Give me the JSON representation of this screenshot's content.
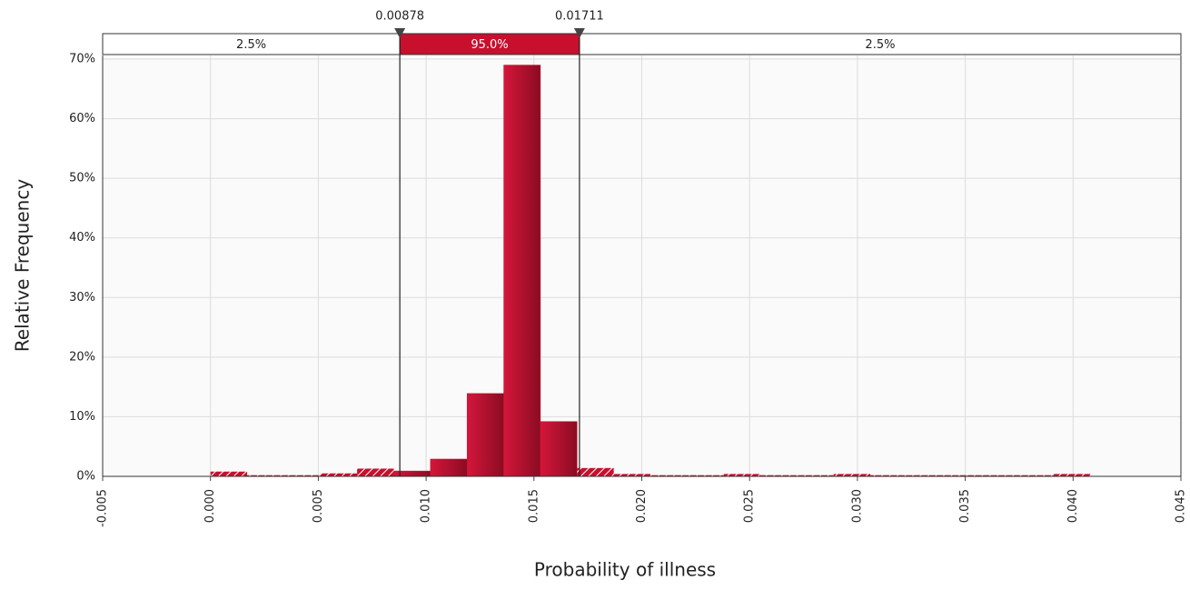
{
  "chart_data": {
    "type": "histogram",
    "xlabel": "Probability of illness",
    "ylabel": "Relative Frequency",
    "bins": [
      0,
      0.0017,
      0.0034,
      0.0051,
      0.0068,
      0.0085,
      0.0102,
      0.0119,
      0.0136,
      0.0153,
      0.017,
      0.0187,
      0.0204,
      0.0221,
      0.0238,
      0.0255,
      0.0272,
      0.0289,
      0.0306,
      0.0323,
      0.034,
      0.0357,
      0.0374,
      0.0391,
      0.0408
    ],
    "values": [
      0.8,
      0.2,
      0.2,
      0.5,
      1.3,
      0.9,
      2.9,
      13.9,
      69.0,
      9.2,
      1.4,
      0.4,
      0.2,
      0.2,
      0.4,
      0.2,
      0.2,
      0.4,
      0.2,
      0.2,
      0.2,
      0.2,
      0.2,
      0.4
    ],
    "color": "#c8102e",
    "xlim": [
      -0.005,
      0.045
    ],
    "ylim": [
      0,
      70
    ],
    "xticks": [
      {
        "value": -0.005,
        "label": "-0.005"
      },
      {
        "value": 0,
        "label": "0.000"
      },
      {
        "value": 0.005,
        "label": "0.005"
      },
      {
        "value": 0.01,
        "label": "0.010"
      },
      {
        "value": 0.015,
        "label": "0.015"
      },
      {
        "value": 0.02,
        "label": "0.020"
      },
      {
        "value": 0.025,
        "label": "0.025"
      },
      {
        "value": 0.03,
        "label": "0.030"
      },
      {
        "value": 0.035,
        "label": "0.035"
      },
      {
        "value": 0.04,
        "label": "0.040"
      },
      {
        "value": 0.045,
        "label": "0.045"
      }
    ],
    "yticks": [
      {
        "value": 0,
        "label": "0%"
      },
      {
        "value": 10,
        "label": "10%"
      },
      {
        "value": 20,
        "label": "20%"
      },
      {
        "value": 30,
        "label": "30%"
      },
      {
        "value": 40,
        "label": "40%"
      },
      {
        "value": 50,
        "label": "50%"
      },
      {
        "value": 60,
        "label": "60%"
      },
      {
        "value": 70,
        "label": "70%"
      }
    ],
    "grid": true,
    "delimiters": [
      0.00878,
      0.01711
    ],
    "region_labels": [
      "2.5%",
      "95.0%",
      "2.5%"
    ]
  }
}
